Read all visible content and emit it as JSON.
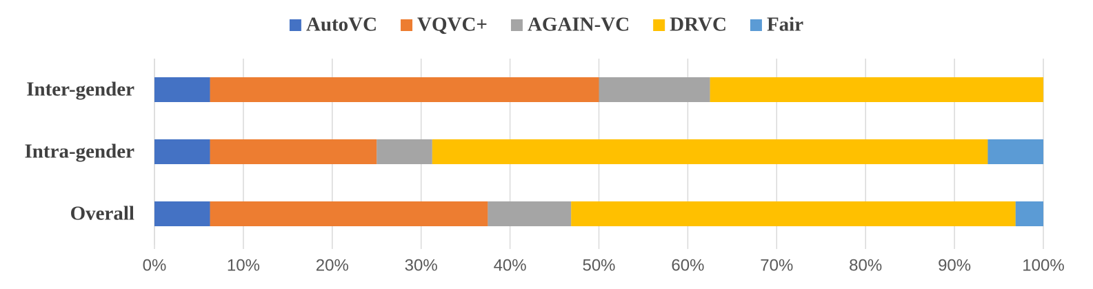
{
  "chart_data": {
    "type": "stacked_barh",
    "categories": [
      "Inter-gender",
      "Intra-gender",
      "Overall"
    ],
    "series": [
      {
        "name": "AutoVC",
        "color": "#4472c4",
        "values": [
          6.25,
          6.25,
          6.25
        ]
      },
      {
        "name": "VQVC+",
        "color": "#ed7d31",
        "values": [
          43.75,
          18.75,
          31.25
        ]
      },
      {
        "name": "AGAIN-VC",
        "color": "#a5a5a5",
        "values": [
          12.5,
          6.25,
          9.375
        ]
      },
      {
        "name": "DRVC",
        "color": "#ffc000",
        "values": [
          37.5,
          62.5,
          50
        ]
      },
      {
        "name": "Fair",
        "color": "#5b9bd5",
        "values": [
          0,
          6.25,
          3.125
        ]
      }
    ],
    "xlim": [
      0,
      100
    ],
    "xticks": [
      {
        "value": 0,
        "label": "0%"
      },
      {
        "value": 10,
        "label": "10%"
      },
      {
        "value": 20,
        "label": "20%"
      },
      {
        "value": 30,
        "label": "30%"
      },
      {
        "value": 40,
        "label": "40%"
      },
      {
        "value": 50,
        "label": "50%"
      },
      {
        "value": 60,
        "label": "60%"
      },
      {
        "value": 70,
        "label": "70%"
      },
      {
        "value": 80,
        "label": "80%"
      },
      {
        "value": 90,
        "label": "90%"
      },
      {
        "value": 100,
        "label": "100%"
      }
    ],
    "grid": true,
    "legend": "top"
  }
}
